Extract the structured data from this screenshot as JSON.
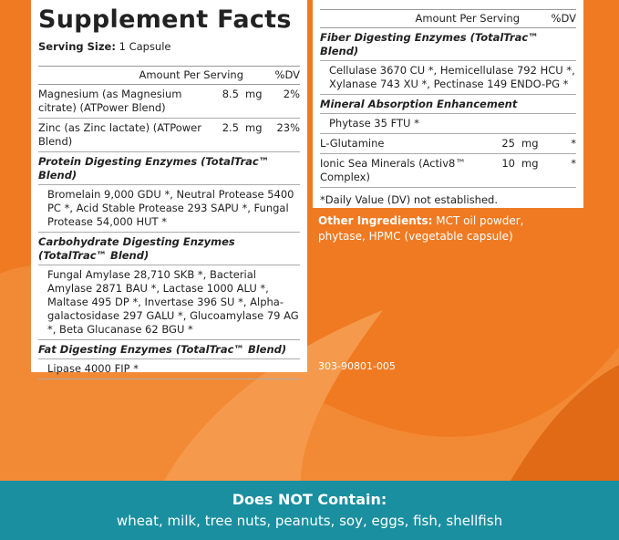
{
  "left": {
    "title": "Supplement Facts",
    "serving_label": "Serving Size:",
    "serving_value": "1 Capsule",
    "header": [
      "Amount Per Serving",
      "%DV"
    ],
    "rows": [
      [
        "Magnesium (as Magnesium citrate) (ATPower Blend)",
        "8.5",
        "mg",
        "2%"
      ],
      [
        "Zinc (as Zinc lactate) (ATPower Blend)",
        "2.5",
        "mg",
        "23%"
      ]
    ],
    "blends": [
      {
        "title": "Protein Digesting Enzymes (TotalTrac™ Blend)",
        "text": "Bromelain 9,000 GDU *, Neutral Protease 5400 PC *, Acid Stable Protease 293 SAPU *, Fungal Protease 54,000 HUT *"
      },
      {
        "title": "Carbohydrate Digesting Enzymes (TotalTrac™ Blend)",
        "text": "Fungal Amylase 28,710 SKB *, Bacterial Amylase 2871 BAU *, Lactase 1000 ALU *, Maltase 495 DP *, Invertase 396 SU *, Alpha-galactosidase 297 GALU *, Glucoamylase 79 AG *, Beta Glucanase 62 BGU *"
      },
      {
        "title": "Fat Digesting Enzymes (TotalTrac™ Blend)",
        "text": "Lipase 4000 FIP *"
      }
    ]
  },
  "right": {
    "header": [
      "Amount Per Serving",
      "%DV"
    ],
    "blends": [
      {
        "title": "Fiber Digesting Enzymes (TotalTrac™ Blend)",
        "text": "Cellulase 3670 CU *, Hemicellulase 792 HCU *, Xylanase 743 XU *, Pectinase 149 ENDO-PG *"
      },
      {
        "title": "Mineral Absorption Enhancement",
        "text": "Phytase 35 FTU *"
      }
    ],
    "rows": [
      [
        "L-Glutamine",
        "25",
        "mg",
        "*"
      ],
      [
        "Ionic Sea Minerals (Activ8™ Complex)",
        "10",
        "mg",
        "*"
      ]
    ],
    "footnote": "*Daily Value (DV) not established."
  },
  "other_ingredients": {
    "label": "Other Ingredients:",
    "text": "MCT oil powder, phytase, HPMC (vegetable capsule)"
  },
  "code": "303-90801-005",
  "banner": {
    "title": "Does NOT Contain:",
    "text": "wheat, milk, tree nuts, peanuts, soy, eggs, fish, shellfish"
  }
}
